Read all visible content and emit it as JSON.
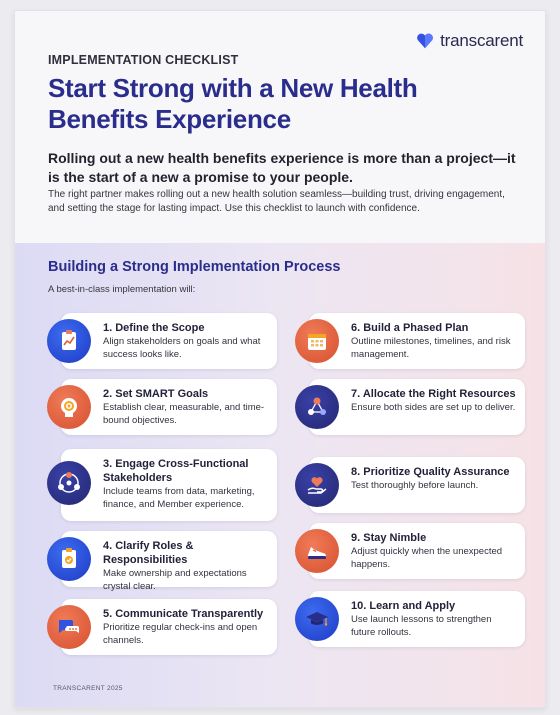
{
  "brand": {
    "name": "transcarent"
  },
  "header": {
    "eyebrow": "IMPLEMENTATION CHECKLIST",
    "title": "Start Strong with a New Health Benefits Experience",
    "lede": "Rolling out a new health benefits experience is more than a project—it is the start of a new a promise to your people.",
    "intro": "The right partner makes rolling out a new health solution seamless—building trust, driving engagement, and setting the stage for lasting impact. Use this checklist to launch with confidence."
  },
  "section": {
    "title": "Building a Strong Implementation Process",
    "subtitle": "A best-in-class implementation will:"
  },
  "items": [
    {
      "title": "1. Define the Scope",
      "desc": "Align stakeholders on goals and what success looks like.",
      "icon": "clipboard-chart-icon"
    },
    {
      "title": "2. Set SMART Goals",
      "desc": "Establish clear, measurable, and time-bound objectives.",
      "icon": "target-head-icon"
    },
    {
      "title": "3. Engage Cross-Functional Stakeholders",
      "desc": "Include teams from data, marketing, finance, and Member experience.",
      "icon": "team-network-icon"
    },
    {
      "title": "4. Clarify Roles & Responsibilities",
      "desc": "Make ownership and expectations crystal clear.",
      "icon": "clipboard-check-icon"
    },
    {
      "title": "5. Communicate Transparently",
      "desc": "Prioritize regular check-ins and open channels.",
      "icon": "chat-bubbles-icon"
    },
    {
      "title": "6. Build a Phased Plan",
      "desc": "Outline milestones, timelines, and risk management.",
      "icon": "calendar-icon"
    },
    {
      "title": "7. Allocate the Right Resources",
      "desc": "Ensure both sides are set up to deliver.",
      "icon": "resource-network-icon"
    },
    {
      "title": "8. Prioritize Quality Assurance",
      "desc": "Test thoroughly before launch.",
      "icon": "heart-hand-icon"
    },
    {
      "title": "9. Stay Nimble",
      "desc": "Adjust quickly when the unexpected happens.",
      "icon": "sneaker-icon"
    },
    {
      "title": "10. Learn and Apply",
      "desc": "Use launch lessons to strengthen future rollouts.",
      "icon": "graduation-cap-icon"
    }
  ],
  "footer": {
    "text": "TRANSCARENT 2025"
  },
  "colors": {
    "brand_navy": "#2b2d8c",
    "accent_orange": "#e0603c",
    "accent_blue": "#2c4fdc"
  }
}
